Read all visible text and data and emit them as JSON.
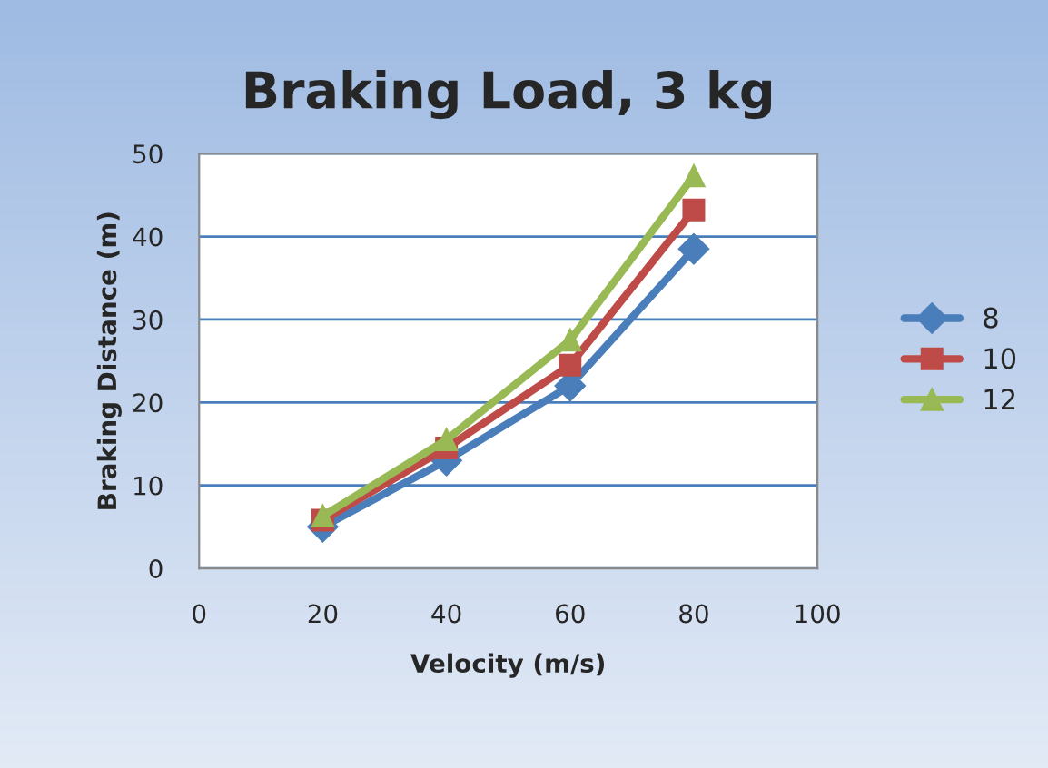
{
  "chart_data": {
    "type": "line",
    "title": "Braking Load, 3 kg",
    "xlabel": "Velocity (m/s)",
    "ylabel": "Braking Distance (m)",
    "x": [
      20,
      40,
      60,
      80
    ],
    "series": [
      {
        "name": "8",
        "color": "#4a7ebb",
        "marker": "diamond",
        "values": [
          5,
          13,
          22,
          38.5
        ]
      },
      {
        "name": "10",
        "color": "#be4b48",
        "marker": "square",
        "values": [
          5.8,
          14.5,
          24.5,
          43.2
        ]
      },
      {
        "name": "12",
        "color": "#98b954",
        "marker": "triangle",
        "values": [
          6.3,
          15.5,
          27.5,
          47.3
        ]
      }
    ],
    "xlim": [
      0,
      100
    ],
    "xticks": [
      0,
      20,
      40,
      60,
      80,
      100
    ],
    "ylim": [
      0,
      50
    ],
    "yticks": [
      0,
      10,
      20,
      30,
      40,
      50
    ],
    "grid": "y",
    "legend": "right",
    "line_style": "solid"
  }
}
